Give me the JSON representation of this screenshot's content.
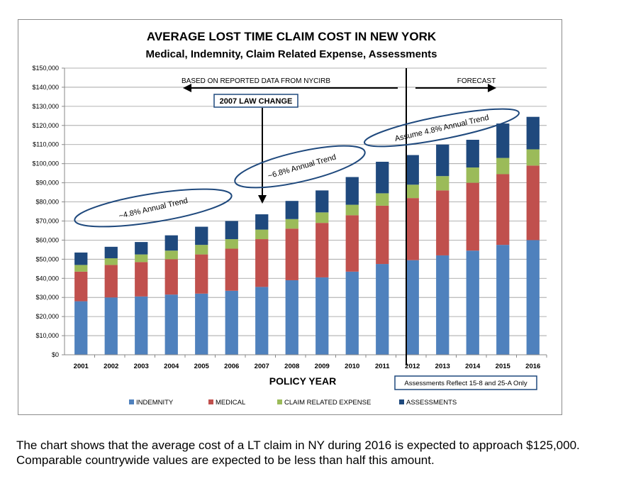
{
  "chart_data": {
    "type": "bar",
    "stacked": true,
    "title": "AVERAGE LOST TIME CLAIM COST IN NEW YORK",
    "subtitle": "Medical, Indemnity, Claim Related Expense, Assessments",
    "xlabel": "POLICY YEAR",
    "ylabel": "",
    "ylim": [
      0,
      150000
    ],
    "ytick_step": 10000,
    "ytick_labels": [
      "$0",
      "$10,000",
      "$20,000",
      "$30,000",
      "$40,000",
      "$50,000",
      "$60,000",
      "$70,000",
      "$80,000",
      "$90,000",
      "$100,000",
      "$110,000",
      "$120,000",
      "$130,000",
      "$140,000",
      "$150,000"
    ],
    "grid": true,
    "legend_position": "bottom",
    "categories": [
      "2001",
      "2002",
      "2003",
      "2004",
      "2005",
      "2006",
      "2007",
      "2008",
      "2009",
      "2010",
      "2011",
      "2012",
      "2013",
      "2014",
      "2015",
      "2016"
    ],
    "series": [
      {
        "name": "INDEMNITY",
        "color": "#4f81bd",
        "values": [
          28000,
          30000,
          30500,
          31500,
          32000,
          33500,
          35500,
          39000,
          40500,
          43500,
          47500,
          49500,
          52000,
          54500,
          57500,
          60000
        ]
      },
      {
        "name": "MEDICAL",
        "color": "#c0504d",
        "values": [
          15500,
          17000,
          18000,
          18500,
          20500,
          22000,
          25000,
          27000,
          28500,
          29500,
          30500,
          32500,
          34000,
          35500,
          37000,
          39000
        ]
      },
      {
        "name": "CLAIM RELATED EXPENSE",
        "color": "#9bbb59",
        "values": [
          3500,
          3500,
          4000,
          4500,
          5000,
          5000,
          5000,
          5000,
          5500,
          5500,
          6500,
          7000,
          7500,
          8000,
          8500,
          8500
        ]
      },
      {
        "name": "ASSESSMENTS",
        "color": "#1f497d",
        "values": [
          6500,
          6000,
          6500,
          8000,
          9500,
          9500,
          8000,
          9500,
          11500,
          14500,
          16500,
          15500,
          16500,
          14500,
          18000,
          17000
        ]
      }
    ],
    "annotations": {
      "based_on": "BASED ON REPORTED DATA FROM NYCIRB",
      "forecast": "FORECAST",
      "law_change": "2007 LAW CHANGE",
      "trend_1": "~4.8% Annual Trend",
      "trend_2": "~6.8% Annual Trend",
      "trend_3": "Assume 4.8% Annual Trend",
      "assessments_note": "Assessments Reflect 15-8 and 25-A Only"
    }
  },
  "caption": "The chart shows that the average cost of a LT claim in NY during 2016 is expected to approach $125,000.  Comparable countrywide values are expected to be less than half this amount."
}
